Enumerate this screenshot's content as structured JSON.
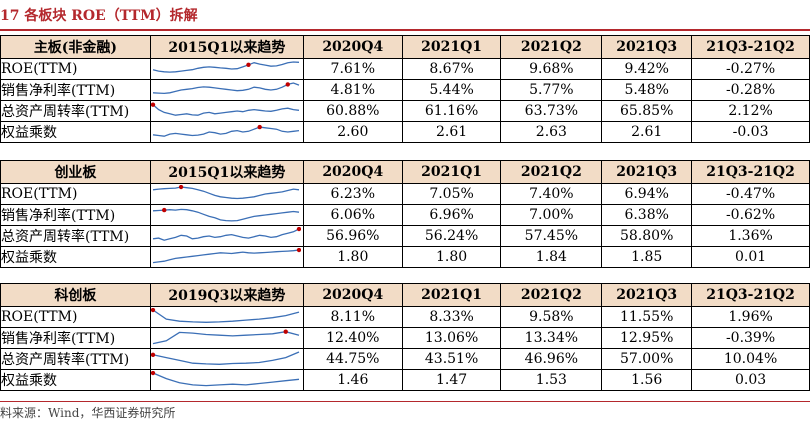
{
  "title": "17  各板块 ROE（TTM）拆解",
  "source": "料来源：Wind，华西证券研究所",
  "colors": {
    "header_bg": "#f2dcc6",
    "accent": "#b4282d",
    "spark_line": "#3b6fb6",
    "spark_marker": "#c00000"
  },
  "sections": [
    {
      "name": "主板(非金融)",
      "trend_header": "2015Q1以来趋势",
      "columns": [
        "2020Q4",
        "2021Q1",
        "2021Q2",
        "2021Q3",
        "21Q3-21Q2"
      ],
      "rows": [
        {
          "label": "ROE(TTM)",
          "values": [
            "7.61%",
            "8.67%",
            "9.68%",
            "9.42%",
            "-0.27%"
          ],
          "trend": [
            0.45,
            0.35,
            0.3,
            0.28,
            0.3,
            0.35,
            0.4,
            0.45,
            0.55,
            0.62,
            0.65,
            0.62,
            0.58,
            0.55,
            0.5,
            0.52,
            0.65,
            0.8,
            0.95,
            0.85,
            0.78,
            0.7,
            0.72,
            0.82,
            0.95,
            1.0,
            0.98
          ],
          "marker": 17
        },
        {
          "label": "销售净利率(TTM)",
          "values": [
            "4.81%",
            "5.44%",
            "5.77%",
            "5.48%",
            "-0.28%"
          ],
          "trend": [
            0.3,
            0.28,
            0.26,
            0.3,
            0.4,
            0.5,
            0.55,
            0.6,
            0.68,
            0.72,
            0.7,
            0.65,
            0.6,
            0.55,
            0.5,
            0.45,
            0.48,
            0.55,
            0.7,
            0.65,
            0.55,
            0.5,
            0.55,
            0.7,
            0.9,
            1.0,
            0.85
          ],
          "marker": 24
        },
        {
          "label": "总资产周转率(TTM)",
          "values": [
            "60.88%",
            "61.16%",
            "63.73%",
            "65.85%",
            "2.12%"
          ],
          "trend": [
            0.95,
            0.6,
            0.4,
            0.3,
            0.2,
            0.25,
            0.3,
            0.22,
            0.2,
            0.35,
            0.4,
            0.3,
            0.35,
            0.4,
            0.45,
            0.5,
            0.45,
            0.55,
            0.6,
            0.55,
            0.5,
            0.48,
            0.55,
            0.65,
            0.7,
            0.6,
            0.55
          ],
          "marker": 0
        },
        {
          "label": "权益乘数",
          "values": [
            "2.60",
            "2.61",
            "2.63",
            "2.61",
            "-0.03"
          ],
          "trend": [
            0.3,
            0.25,
            0.2,
            0.35,
            0.4,
            0.35,
            0.3,
            0.25,
            0.28,
            0.35,
            0.5,
            0.45,
            0.35,
            0.4,
            0.55,
            0.6,
            0.5,
            0.55,
            0.7,
            0.85,
            0.8,
            0.75,
            0.7,
            0.55,
            0.5,
            0.55,
            0.6
          ],
          "marker": 19
        }
      ]
    },
    {
      "name": "创业板",
      "trend_header": "2015Q1以来趋势",
      "columns": [
        "2020Q4",
        "2021Q1",
        "2021Q2",
        "2021Q3",
        "21Q3-21Q2"
      ],
      "rows": [
        {
          "label": "ROE(TTM)",
          "values": [
            "6.23%",
            "7.05%",
            "7.40%",
            "6.94%",
            "-0.47%"
          ],
          "trend": [
            0.8,
            0.85,
            0.88,
            0.9,
            0.92,
            1.0,
            0.95,
            0.9,
            0.8,
            0.7,
            0.55,
            0.4,
            0.3,
            0.25,
            0.2,
            0.18,
            0.2,
            0.25,
            0.3,
            0.4,
            0.5,
            0.55,
            0.6,
            0.65,
            0.75,
            0.85,
            0.8
          ],
          "marker": 5
        },
        {
          "label": "销售净利率(TTM)",
          "values": [
            "6.06%",
            "6.96%",
            "7.00%",
            "6.38%",
            "-0.62%"
          ],
          "trend": [
            0.8,
            0.82,
            0.85,
            0.88,
            0.85,
            0.9,
            0.88,
            0.8,
            0.7,
            0.55,
            0.4,
            0.3,
            0.15,
            0.1,
            0.08,
            0.1,
            0.2,
            0.3,
            0.4,
            0.45,
            0.5,
            0.55,
            0.6,
            0.65,
            0.7,
            0.75,
            0.7
          ],
          "marker": 2
        },
        {
          "label": "总资产周转率(TTM)",
          "values": [
            "56.96%",
            "56.24%",
            "57.45%",
            "58.80%",
            "1.36%"
          ],
          "trend": [
            0.3,
            0.35,
            0.2,
            0.3,
            0.4,
            0.55,
            0.5,
            0.3,
            0.35,
            0.45,
            0.5,
            0.4,
            0.45,
            0.55,
            0.6,
            0.5,
            0.4,
            0.35,
            0.45,
            0.55,
            0.5,
            0.4,
            0.45,
            0.6,
            0.7,
            0.8,
            1.0
          ],
          "marker": 26
        },
        {
          "label": "权益乘数",
          "values": [
            "1.80",
            "1.80",
            "1.84",
            "1.85",
            "0.01"
          ],
          "trend": [
            0.1,
            0.15,
            0.2,
            0.3,
            0.4,
            0.45,
            0.5,
            0.55,
            0.6,
            0.65,
            0.7,
            0.75,
            0.8,
            0.78,
            0.75,
            0.8,
            0.85,
            0.8,
            0.78,
            0.8,
            0.82,
            0.85,
            0.88,
            0.9,
            0.92,
            0.95,
            1.0
          ],
          "marker": 26
        }
      ]
    },
    {
      "name": "科创板",
      "trend_header": "2019Q3以来趋势",
      "columns": [
        "2020Q4",
        "2021Q1",
        "2021Q2",
        "2021Q3",
        "21Q3-21Q2"
      ],
      "rows": [
        {
          "label": "ROE(TTM)",
          "values": [
            "8.11%",
            "8.33%",
            "9.58%",
            "11.55%",
            "1.96%"
          ],
          "trend": [
            1.0,
            0.35,
            0.2,
            0.15,
            0.12,
            0.15,
            0.2,
            0.28,
            0.35,
            0.45,
            0.6,
            0.85
          ],
          "marker": 0
        },
        {
          "label": "销售净利率(TTM)",
          "values": [
            "12.40%",
            "13.06%",
            "13.34%",
            "12.95%",
            "-0.39%"
          ],
          "trend": [
            0.1,
            0.3,
            0.9,
            0.85,
            0.75,
            0.7,
            0.65,
            0.7,
            0.75,
            0.8,
            0.95,
            0.7
          ],
          "marker": 10
        },
        {
          "label": "总资产周转率(TTM)",
          "values": [
            "44.75%",
            "43.51%",
            "46.96%",
            "57.00%",
            "10.04%"
          ],
          "trend": [
            0.8,
            0.6,
            0.4,
            0.2,
            0.15,
            0.12,
            0.18,
            0.2,
            0.25,
            0.4,
            0.6,
            1.0
          ],
          "marker": 0
        },
        {
          "label": "权益乘数",
          "values": [
            "1.46",
            "1.47",
            "1.53",
            "1.56",
            "0.03"
          ],
          "trend": [
            1.0,
            0.6,
            0.3,
            0.15,
            0.1,
            0.15,
            0.2,
            0.15,
            0.25,
            0.35,
            0.45,
            0.55
          ],
          "marker": 0
        }
      ]
    }
  ]
}
